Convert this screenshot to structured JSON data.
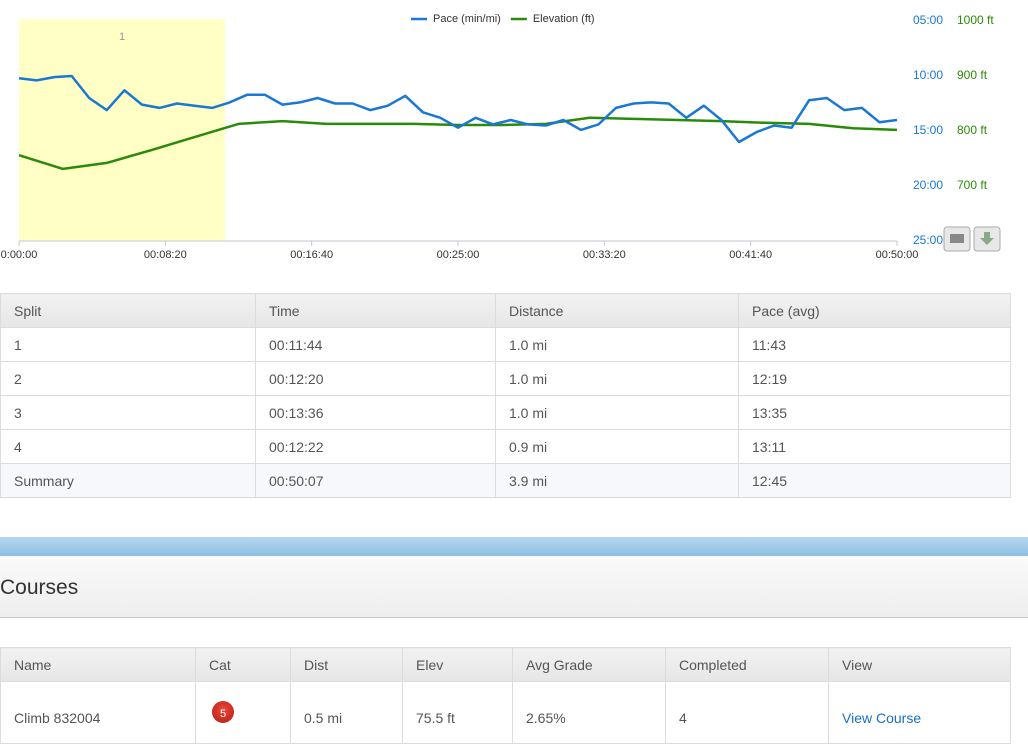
{
  "chart_data": {
    "type": "line",
    "legend_position": "top",
    "band": {
      "label": "1",
      "xlim": [
        0,
        704
      ],
      "color": "#ffffc6"
    },
    "xlim": [
      0,
      3000
    ],
    "xticks": [
      {
        "value": 0,
        "label": "0:00:00"
      },
      {
        "value": 500,
        "label": "00:08:20"
      },
      {
        "value": 1000,
        "label": "00:16:40"
      },
      {
        "value": 1500,
        "label": "00:25:00"
      },
      {
        "value": 2000,
        "label": "00:33:20"
      },
      {
        "value": 2500,
        "label": "00:41:40"
      },
      {
        "value": 3000,
        "label": "00:50:00"
      }
    ],
    "ylim": [
      25,
      5
    ],
    "yticks": [
      {
        "value": 5,
        "label": "05:00"
      },
      {
        "value": 10,
        "label": "10:00"
      },
      {
        "value": 15,
        "label": "15:00"
      },
      {
        "value": 20,
        "label": "20:00"
      },
      {
        "value": 25,
        "label": "25:00"
      }
    ],
    "y2lim": [
      600,
      1000
    ],
    "y2ticks": [
      {
        "value": 1000,
        "label": "1000 ft"
      },
      {
        "value": 900,
        "label": "900 ft"
      },
      {
        "value": 800,
        "label": "800 ft"
      },
      {
        "value": 700,
        "label": "700 ft"
      }
    ],
    "series": [
      {
        "name": "Pace (min/mi)",
        "color": "#1a78d2",
        "x": [
          0,
          60,
          120,
          180,
          240,
          300,
          360,
          420,
          480,
          540,
          600,
          660,
          720,
          780,
          840,
          900,
          960,
          1020,
          1080,
          1140,
          1200,
          1260,
          1320,
          1380,
          1440,
          1500,
          1560,
          1620,
          1680,
          1740,
          1800,
          1860,
          1920,
          1980,
          2040,
          2100,
          2160,
          2220,
          2280,
          2340,
          2400,
          2460,
          2520,
          2580,
          2640,
          2700,
          2760,
          2820,
          2880,
          2940,
          3000
        ],
        "values": [
          10.2,
          10.4,
          10.1,
          10.0,
          12.0,
          13.1,
          11.3,
          12.6,
          12.9,
          12.5,
          12.7,
          12.9,
          12.4,
          11.7,
          11.7,
          12.6,
          12.4,
          12.0,
          12.5,
          12.5,
          13.1,
          12.7,
          11.8,
          13.3,
          13.8,
          14.7,
          13.8,
          14.4,
          14.0,
          14.4,
          14.5,
          14.0,
          14.9,
          14.4,
          12.9,
          12.5,
          12.4,
          12.5,
          13.8,
          12.7,
          14.0,
          16.0,
          15.1,
          14.5,
          14.7,
          12.2,
          12.0,
          13.1,
          12.9,
          14.2,
          14.0
        ]
      },
      {
        "name": "Elevation (ft)",
        "color": "#2a8a0a",
        "axis": "y2",
        "x": [
          0,
          150,
          300,
          450,
          600,
          750,
          900,
          1050,
          1200,
          1350,
          1500,
          1650,
          1800,
          1950,
          2100,
          2250,
          2400,
          2550,
          2700,
          2850,
          3000
        ],
        "values": [
          756,
          731,
          742,
          765,
          789,
          813,
          818,
          813,
          813,
          813,
          811,
          811,
          813,
          824,
          822,
          820,
          818,
          815,
          813,
          805,
          802
        ]
      }
    ]
  },
  "splits": {
    "headers": [
      "Split",
      "Time",
      "Distance",
      "Pace (avg)"
    ],
    "rows": [
      [
        "1",
        "00:11:44",
        "1.0 mi",
        "11:43"
      ],
      [
        "2",
        "00:12:20",
        "1.0 mi",
        "12:19"
      ],
      [
        "3",
        "00:13:36",
        "1.0 mi",
        "13:35"
      ],
      [
        "4",
        "00:12:22",
        "0.9 mi",
        "13:11"
      ],
      [
        "Summary",
        "00:50:07",
        "3.9 mi",
        "12:45"
      ]
    ]
  },
  "courses": {
    "title": "Courses",
    "headers": [
      "Name",
      "Cat",
      "Dist",
      "Elev",
      "Avg Grade",
      "Completed",
      "View"
    ],
    "rows": [
      [
        "Climb 832004",
        "5",
        "0.5 mi",
        "75.5 ft",
        "2.65%",
        "4",
        "View Course"
      ]
    ]
  }
}
